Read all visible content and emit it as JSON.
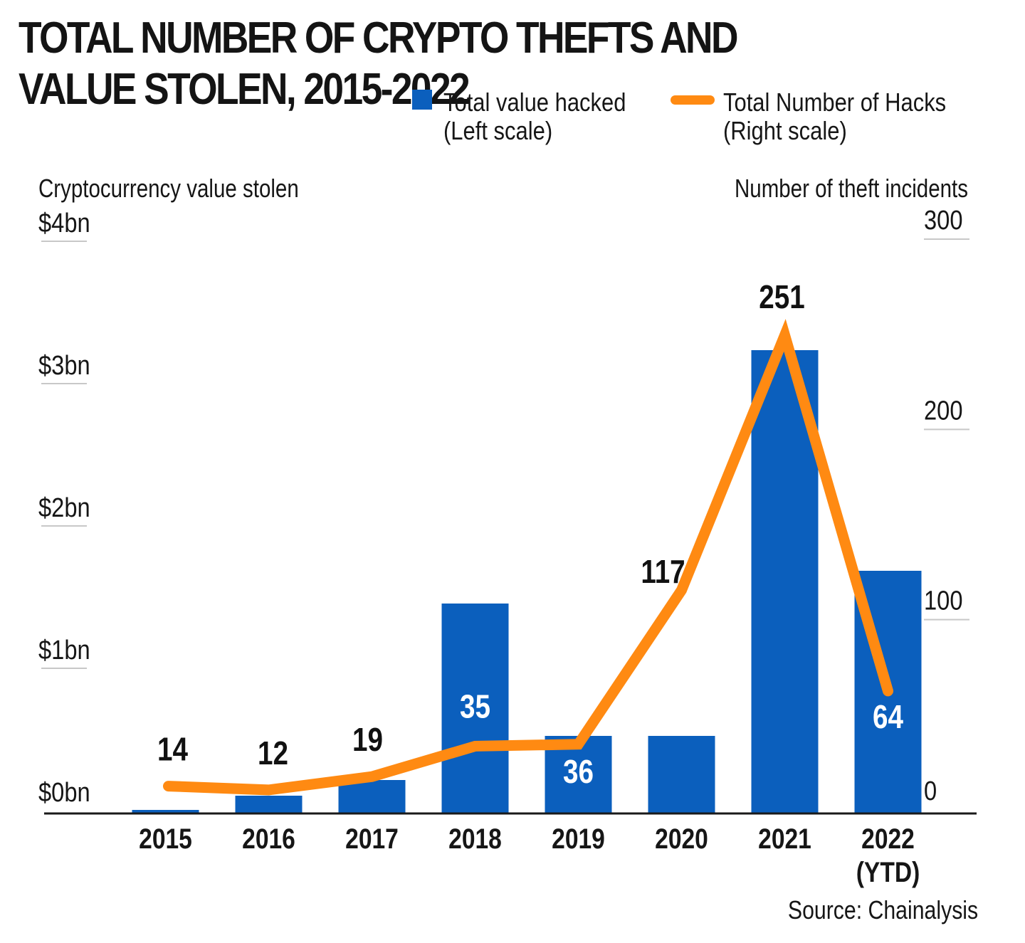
{
  "title": "TOTAL NUMBER OF CRYPTO THEFTS AND VALUE STOLEN, 2015-2022",
  "legend": {
    "bar": {
      "line1": "Total value hacked",
      "line2": "(Left scale)"
    },
    "line": {
      "line1": "Total Number of Hacks",
      "line2": "(Right scale)"
    }
  },
  "source": "Source: Chainalysis",
  "colors": {
    "bar": "#0b5fbd",
    "line": "#ff8a12",
    "axis": "#1a1a1a",
    "grid": "#c8c8c8"
  },
  "chart_data": {
    "type": "bar",
    "categories": [
      "2015",
      "2016",
      "2017",
      "2018",
      "2019",
      "2020",
      "2021",
      "2022\n(YTD)"
    ],
    "left_axis": {
      "label": "Cryptocurrency value stolen",
      "ticks": [
        "$0bn",
        "$1bn",
        "$2bn",
        "$3bn",
        "$4bn"
      ],
      "range": [
        0,
        4
      ]
    },
    "right_axis": {
      "label": "Number of theft incidents",
      "ticks": [
        "0",
        "100",
        "200",
        "300"
      ],
      "range": [
        0,
        300
      ]
    },
    "series": [
      {
        "name": "Total value hacked",
        "type": "bar",
        "axis": "left",
        "values": [
          0.02,
          0.12,
          0.23,
          1.47,
          0.54,
          0.54,
          3.25,
          1.7
        ]
      },
      {
        "name": "Total Number of Hacks",
        "type": "line",
        "axis": "right",
        "values": [
          14,
          12,
          19,
          35,
          36,
          117,
          251,
          64
        ],
        "labels": [
          "14",
          "12",
          "19",
          "35",
          "36",
          "117",
          "251",
          "64"
        ]
      }
    ],
    "grid": false,
    "legend_position": "top-right"
  }
}
